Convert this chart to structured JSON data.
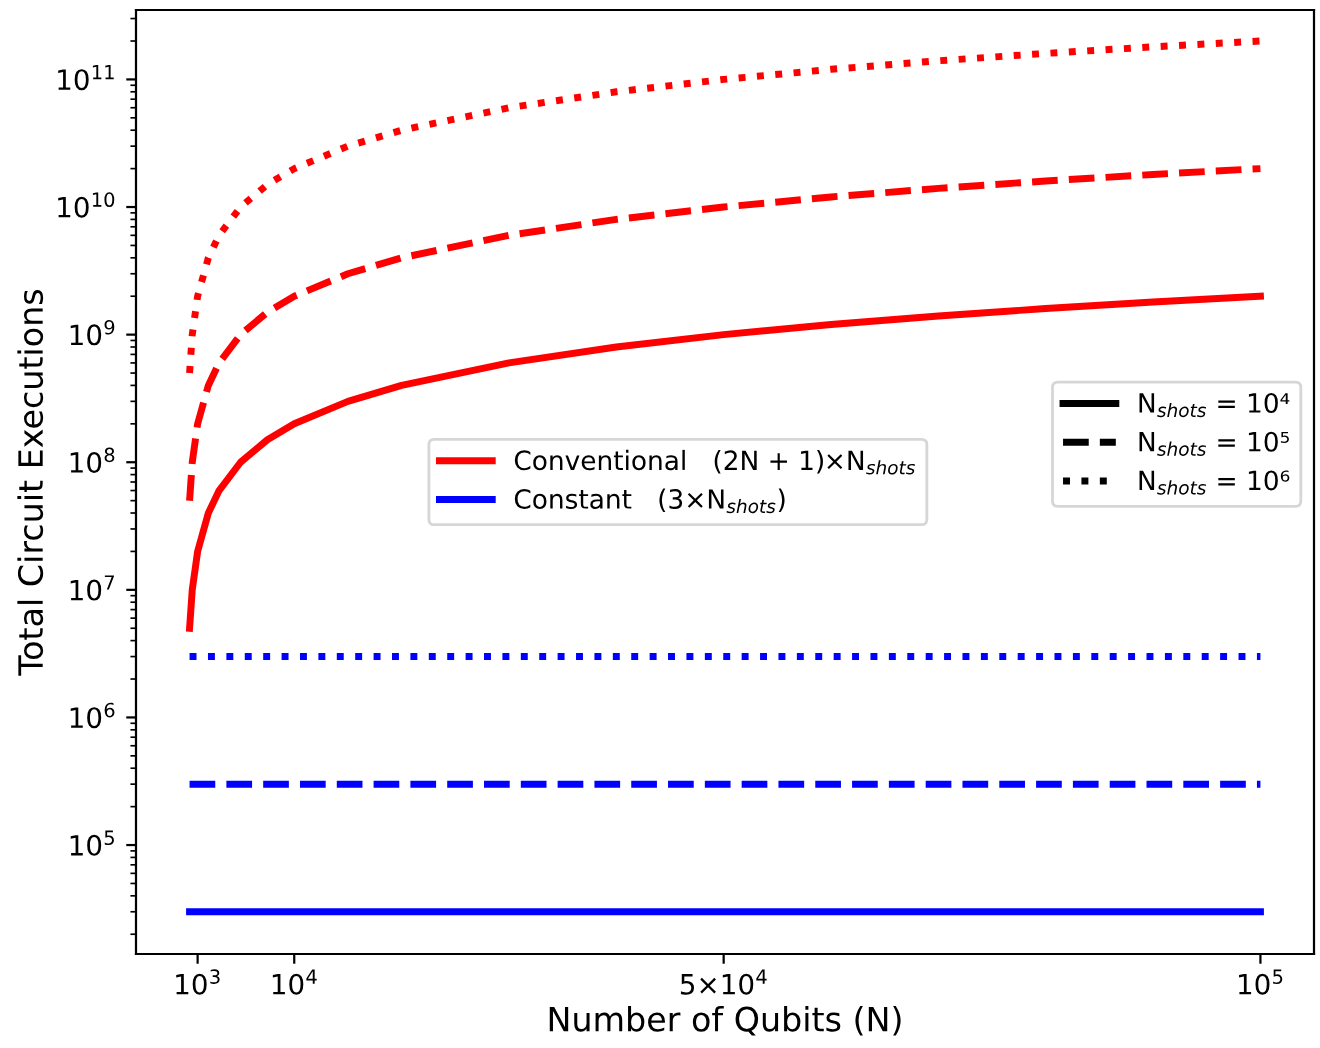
{
  "chart_data": {
    "type": "line",
    "xlabel": "Number of Qubits (N)",
    "ylabel": "Total Circuit Executions",
    "log": "y",
    "grid": false,
    "legend": "center",
    "xlim": [
      -4740,
      104990
    ],
    "ylim": [
      14000,
      350000000000
    ],
    "xticks": [
      {
        "value": 1000,
        "label": "10$^{3}$"
      },
      {
        "value": 10000,
        "label": "10$^{4}$"
      },
      {
        "value": 50000,
        "label": "5×10$^{4}$"
      },
      {
        "value": 100000,
        "label": "10$^{5}$"
      }
    ],
    "yticks": [
      {
        "value": 100000,
        "label": "10$^{5}$"
      },
      {
        "value": 1000000,
        "label": "10$^{6}$"
      },
      {
        "value": 10000000,
        "label": "10$^{7}$"
      },
      {
        "value": 100000000,
        "label": "10$^{8}$"
      },
      {
        "value": 1000000000,
        "label": "10$^{9}$"
      },
      {
        "value": 10000000000,
        "label": "10$^{10}$"
      },
      {
        "value": 100000000000,
        "label": "10$^{11}$"
      }
    ],
    "series": [
      {
        "name": "Conventional   (2N + 1)×N$_{shots}$",
        "color": "#ff0000",
        "line_style": "solid",
        "x": [
          250,
          500,
          1000,
          2000,
          3000,
          5000,
          7500,
          10000,
          15000,
          20000,
          30000,
          40000,
          50000,
          60000,
          70000,
          80000,
          90000,
          100000
        ],
        "values": [
          5000000,
          10000000,
          20000000,
          40000000,
          60000000,
          100000000,
          150000000,
          200000000,
          300000000,
          400000000,
          600000000,
          800000000,
          1000000000,
          1200000000,
          1400000000,
          1600000000,
          1800000000,
          2000000000
        ]
      },
      {
        "color": "#ff0000",
        "line_style": "dashed",
        "x": [
          250,
          500,
          1000,
          2000,
          3000,
          5000,
          7500,
          10000,
          15000,
          20000,
          30000,
          40000,
          50000,
          60000,
          70000,
          80000,
          90000,
          100000
        ],
        "values": [
          50000000,
          100000000,
          200000000,
          400000000,
          600000000,
          1000000000,
          1500000000,
          2000000000,
          3000000000,
          4000000000,
          6000000000,
          8000000000,
          10000000000,
          12000000000,
          14000000000,
          16000000000,
          18000000000,
          20000000000
        ]
      },
      {
        "color": "#ff0000",
        "line_style": "dotted",
        "x": [
          250,
          500,
          1000,
          2000,
          3000,
          5000,
          7500,
          10000,
          15000,
          20000,
          30000,
          40000,
          50000,
          60000,
          70000,
          80000,
          90000,
          100000
        ],
        "values": [
          500000000,
          1000000000,
          2000000000,
          4000000000,
          6000000000,
          10000000000,
          15000000000,
          20000000000,
          30000000000,
          40000000000,
          60000000000,
          80000000000,
          100000000000,
          120000000000,
          140000000000,
          160000000000,
          180000000000,
          200000000000
        ]
      },
      {
        "name": "Constant   (3×N$_{shots}$)",
        "color": "#0000ff",
        "line_style": "solid",
        "x": [
          250,
          100000
        ],
        "values": [
          30000,
          30000
        ]
      },
      {
        "color": "#0000ff",
        "line_style": "dashed",
        "x": [
          250,
          100000
        ],
        "values": [
          300000,
          300000
        ]
      },
      {
        "color": "#0000ff",
        "line_style": "dotted",
        "x": [
          250,
          100000
        ],
        "values": [
          3000000,
          3000000
        ]
      },
      {
        "name": "N$_{shots}$ = 10⁴",
        "color": "#000000",
        "line_style": "solid"
      },
      {
        "name": "N$_{shots}$ = 10⁵",
        "color": "#000000",
        "line_style": "dashed"
      },
      {
        "name": "N$_{shots}$ = 10⁶",
        "color": "#000000",
        "line_style": "dotted"
      }
    ]
  }
}
